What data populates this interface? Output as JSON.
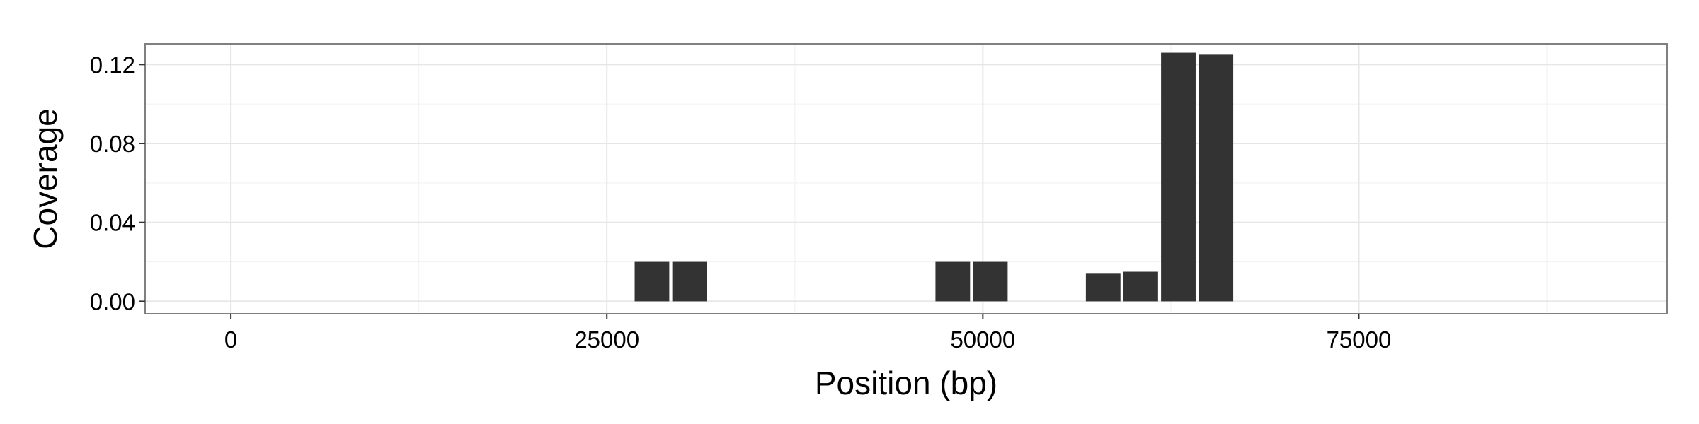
{
  "chart_data": {
    "type": "bar",
    "title": "",
    "xlabel": "Position (bp)",
    "ylabel": "Coverage",
    "xlim": [
      -5700,
      95500
    ],
    "ylim": [
      -0.0063,
      0.1305
    ],
    "x_ticks": [
      0,
      25000,
      50000,
      75000
    ],
    "x_tick_labels": [
      "0",
      "25000",
      "50000",
      "75000"
    ],
    "x_minor_ticks": [
      12500,
      37500,
      62500,
      87500
    ],
    "y_ticks": [
      0.0,
      0.04,
      0.08,
      0.12
    ],
    "y_tick_labels": [
      "0.00",
      "0.04",
      "0.08",
      "0.12"
    ],
    "y_minor_ticks": [
      0.02,
      0.06,
      0.1
    ],
    "bar_width": 2300,
    "x": [
      28000,
      30500,
      48000,
      50500,
      58000,
      60500,
      63000,
      65500
    ],
    "values": [
      0.02,
      0.02,
      0.02,
      0.02,
      0.014,
      0.015,
      0.126,
      0.125
    ],
    "grid": true,
    "legend": "none",
    "colors": {
      "bar": "#333333",
      "panel_border": "#808080",
      "grid_major": "#e6e6e6",
      "grid_minor": "#f3f3f3",
      "background": "#ffffff"
    }
  }
}
